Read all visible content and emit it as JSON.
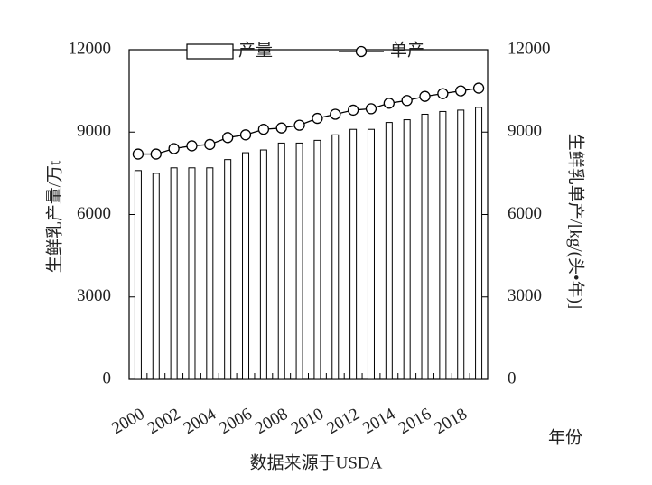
{
  "chart_data": {
    "type": "bar",
    "categories": [
      "2000",
      null,
      "2002",
      null,
      "2004",
      null,
      "2006",
      null,
      "2008",
      null,
      "2010",
      null,
      "2012",
      null,
      "2014",
      null,
      "2016",
      null,
      "2018",
      null
    ],
    "series": [
      {
        "name": "产量",
        "type": "bar",
        "color": "#000000",
        "values": [
          7600,
          7500,
          7700,
          7700,
          7700,
          8000,
          8250,
          8350,
          8600,
          8600,
          8700,
          8900,
          9100,
          9100,
          9350,
          9450,
          9650,
          9750,
          9800,
          9900
        ]
      },
      {
        "name": "单产",
        "type": "line",
        "axis": "y2",
        "color": "#000000",
        "values": [
          8200,
          8200,
          8400,
          8500,
          8550,
          8800,
          8900,
          9100,
          9150,
          9250,
          9500,
          9650,
          9800,
          9850,
          10050,
          10150,
          10300,
          10400,
          10500,
          10600
        ]
      }
    ],
    "ylim": [
      0,
      12000
    ],
    "yticks": [
      0,
      3000,
      6000,
      9000,
      12000
    ],
    "y2lim": [
      0,
      12000
    ],
    "y2ticks": [
      0,
      3000,
      6000,
      9000,
      12000
    ],
    "y_label": "生鲜乳产量/万t",
    "y2_label": "生鲜乳单产/[kg/(头•年)]",
    "x_label": "年份",
    "source": "数据来源于USDA",
    "legend": "top"
  }
}
